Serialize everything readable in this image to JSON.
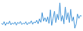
{
  "chart_data": {
    "type": "line",
    "x": [
      0,
      1,
      2,
      3,
      4,
      5,
      6,
      7,
      8,
      9,
      10,
      11,
      12,
      13,
      14,
      15,
      16,
      17,
      18,
      19,
      20,
      21,
      22,
      23,
      24,
      25,
      26,
      27,
      28,
      29,
      30,
      31,
      32,
      33,
      34,
      35,
      36,
      37,
      38,
      39,
      40,
      41,
      42,
      43,
      44,
      45,
      46,
      47,
      48,
      49,
      50,
      51,
      52,
      53,
      54,
      55,
      56,
      57,
      58,
      59
    ],
    "values": [
      22,
      18,
      28,
      15,
      25,
      20,
      30,
      17,
      24,
      19,
      27,
      16,
      26,
      21,
      29,
      18,
      23,
      20,
      28,
      17,
      25,
      22,
      31,
      19,
      27,
      24,
      33,
      21,
      38,
      26,
      60,
      30,
      42,
      28,
      45,
      22,
      70,
      15,
      40,
      65,
      25,
      55,
      35,
      95,
      30,
      50,
      20,
      80,
      35,
      60,
      25,
      72,
      30,
      45,
      5,
      20,
      55,
      40,
      50,
      48
    ],
    "color": "#3a8fd6",
    "xlim": [
      0,
      59
    ],
    "ylim": [
      0,
      100
    ],
    "tick_labels": false,
    "grid": false
  }
}
